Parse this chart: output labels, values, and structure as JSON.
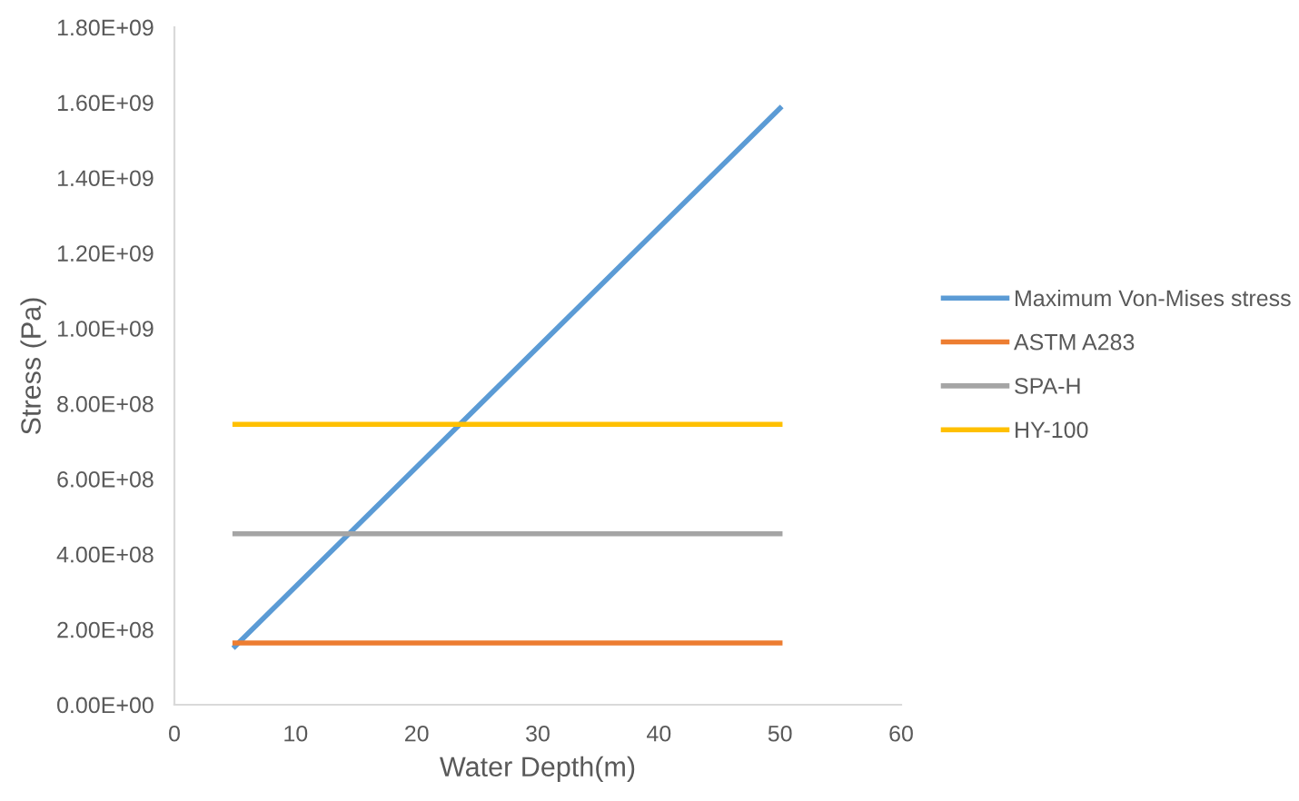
{
  "chart_data": {
    "type": "line",
    "xlabel": "Water Depth(m)",
    "ylabel": "Stress (Pa)",
    "x": [
      5,
      50
    ],
    "series": [
      {
        "name": "Maximum Von-Mises stress",
        "color": "#5b9bd5",
        "values": [
          155000000,
          1585000000
        ]
      },
      {
        "name": "ASTM A283",
        "color": "#ed7d31",
        "values": [
          164000000,
          164000000
        ]
      },
      {
        "name": "SPA-H",
        "color": "#a5a5a5",
        "values": [
          454000000,
          454000000
        ]
      },
      {
        "name": "HY-100",
        "color": "#ffc000",
        "values": [
          745000000,
          745000000
        ]
      }
    ],
    "xlim": [
      0,
      60
    ],
    "xticks": [
      0,
      10,
      20,
      30,
      40,
      50,
      60
    ],
    "ylim": [
      0,
      1800000000
    ],
    "yticks": [
      {
        "value": 0,
        "label": "0.00E+00"
      },
      {
        "value": 200000000,
        "label": "2.00E+08"
      },
      {
        "value": 400000000,
        "label": "4.00E+08"
      },
      {
        "value": 600000000,
        "label": "6.00E+08"
      },
      {
        "value": 800000000,
        "label": "8.00E+08"
      },
      {
        "value": 1000000000,
        "label": "1.00E+09"
      },
      {
        "value": 1200000000,
        "label": "1.20E+09"
      },
      {
        "value": 1400000000,
        "label": "1.40E+09"
      },
      {
        "value": 1600000000,
        "label": "1.60E+09"
      },
      {
        "value": 1800000000,
        "label": "1.80E+09"
      }
    ],
    "grid": false,
    "legend": "right",
    "marker": "none",
    "line_style": "solid"
  }
}
